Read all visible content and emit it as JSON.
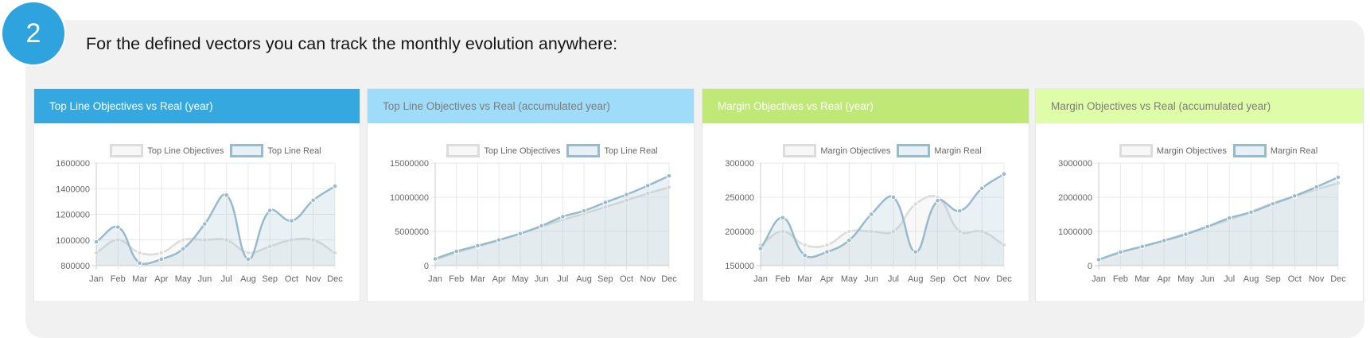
{
  "step": {
    "number": "2",
    "text": "For the defined vectors you can track the monthly evolution anywhere:"
  },
  "colors": {
    "step_circle": "#2ea3de",
    "objectives_line": "#dcdcdc",
    "real_line": "#97bbcd"
  },
  "panels": [
    {
      "title": "Top Line Objectives vs Real (year)",
      "header_color": "#35a8e0",
      "title_color": "#ffffff",
      "chart_data": {
        "type": "line",
        "categories": [
          "Jan",
          "Feb",
          "Mar",
          "Apr",
          "May",
          "Jun",
          "Jul",
          "Aug",
          "Sep",
          "Oct",
          "Nov",
          "Dec"
        ],
        "ylim": [
          800000,
          1600000
        ],
        "yticks": [
          "800000",
          "1000000",
          "1200000",
          "1400000",
          "1600000"
        ],
        "grid": true,
        "legend": "top",
        "series": [
          {
            "name": "Top Line Objectives",
            "values": [
              900000,
              1000000,
              900000,
              900000,
              1000000,
              1000000,
              1000000,
              900000,
              950000,
              1000000,
              1000000,
              900000
            ]
          },
          {
            "name": "Top Line Real",
            "values": [
              985000,
              1100000,
              820000,
              850000,
              930000,
              1125000,
              1350000,
              850000,
              1230000,
              1150000,
              1310000,
              1420000
            ]
          }
        ]
      }
    },
    {
      "title": "Top Line Objectives vs Real (accumulated year)",
      "header_color": "#9edcfa",
      "title_color": "#7d7d7d",
      "chart_data": {
        "type": "line",
        "categories": [
          "Jan",
          "Feb",
          "Mar",
          "Apr",
          "May",
          "Jun",
          "Jul",
          "Aug",
          "Sep",
          "Oct",
          "Nov",
          "Dec"
        ],
        "ylim": [
          0,
          15000000
        ],
        "yticks": [
          "0",
          "5000000",
          "10000000",
          "15000000"
        ],
        "grid": true,
        "legend": "top",
        "series": [
          {
            "name": "Top Line Objectives",
            "values": [
              900000,
              1900000,
              2800000,
              3700000,
              4700000,
              5700000,
              6700000,
              7600000,
              8550000,
              9550000,
              10550000,
              11450000
            ]
          },
          {
            "name": "Top Line Real",
            "values": [
              985000,
              2085000,
              2905000,
              3755000,
              4685000,
              5810000,
              7160000,
              8010000,
              9240000,
              10390000,
              11700000,
              13120000
            ]
          }
        ]
      }
    },
    {
      "title": "Margin Objectives vs Real (year)",
      "header_color": "#bfe877",
      "title_color": "#ffffff",
      "chart_data": {
        "type": "line",
        "categories": [
          "Jan",
          "Feb",
          "Mar",
          "Apr",
          "May",
          "Jun",
          "Jul",
          "Aug",
          "Sep",
          "Oct",
          "Nov",
          "Dec"
        ],
        "ylim": [
          150000,
          300000
        ],
        "yticks": [
          "150000",
          "200000",
          "250000",
          "300000"
        ],
        "grid": true,
        "legend": "top",
        "series": [
          {
            "name": "Margin Objectives",
            "values": [
              180000,
              200000,
              180000,
              180000,
              200000,
              200000,
              200000,
              240000,
              250000,
              200000,
              200000,
              180000
            ]
          },
          {
            "name": "Margin Real",
            "values": [
              175000,
              220000,
              165000,
              170000,
              187000,
              225000,
              250000,
              170000,
              245000,
              230000,
              263000,
              284000
            ]
          }
        ]
      }
    },
    {
      "title": "Margin Objectives vs Real (accumulated year)",
      "header_color": "#dffca8",
      "title_color": "#7d7d7d",
      "chart_data": {
        "type": "line",
        "categories": [
          "Jan",
          "Feb",
          "Mar",
          "Apr",
          "May",
          "Jun",
          "Jul",
          "Aug",
          "Sep",
          "Oct",
          "Nov",
          "Dec"
        ],
        "ylim": [
          0,
          3000000
        ],
        "yticks": [
          "0",
          "1000000",
          "2000000",
          "3000000"
        ],
        "grid": true,
        "legend": "top",
        "series": [
          {
            "name": "Margin Objectives",
            "values": [
              180000,
              380000,
              560000,
              740000,
              940000,
              1140000,
              1340000,
              1580000,
              1830000,
              2030000,
              2230000,
              2410000
            ]
          },
          {
            "name": "Margin Real",
            "values": [
              175000,
              395000,
              560000,
              730000,
              917000,
              1142000,
              1392000,
              1562000,
              1807000,
              2037000,
              2300000,
              2584000
            ]
          }
        ]
      }
    }
  ]
}
